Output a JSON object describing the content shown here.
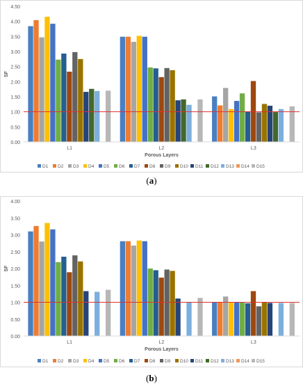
{
  "captions": [
    "a",
    "b"
  ],
  "legend_labels": [
    "D1",
    "D2",
    "D3",
    "D4",
    "D5",
    "D6",
    "D7",
    "D8",
    "D9",
    "D10",
    "D11",
    "D12",
    "D13",
    "D14",
    "D15"
  ],
  "colors": [
    "#4a7fc1",
    "#ed7d31",
    "#a5a5a5",
    "#ffc000",
    "#4472c4",
    "#70ad47",
    "#255e91",
    "#9e480e",
    "#636363",
    "#997300",
    "#264478",
    "#43682b",
    "#7cafdd",
    "#f1975a",
    "#b7b7b7"
  ],
  "chart_data": [
    {
      "type": "bar",
      "panel": "a",
      "categories": [
        "L1",
        "L2",
        "L3"
      ],
      "xlabel": "Porous Layers",
      "ylabel": "SF",
      "ylim": [
        0,
        4.5
      ],
      "ytick_step": 0.5,
      "ytick_labels": [
        "0.00",
        "0.50",
        "1.00",
        "1.50",
        "2.00",
        "2.50",
        "3.00",
        "3.50",
        "4.00",
        "4.50"
      ],
      "reference_line": 1.0,
      "legend_position": "bottom",
      "grid": false,
      "series": [
        {
          "name": "D1",
          "values": [
            3.84,
            3.49,
            1.51
          ]
        },
        {
          "name": "D2",
          "values": [
            4.04,
            3.49,
            1.21
          ]
        },
        {
          "name": "D3",
          "values": [
            3.47,
            3.32,
            1.79
          ]
        },
        {
          "name": "D4",
          "values": [
            4.15,
            3.52,
            1.09
          ]
        },
        {
          "name": "D5",
          "values": [
            3.92,
            3.49,
            1.36
          ]
        },
        {
          "name": "D6",
          "values": [
            2.73,
            2.47,
            1.61
          ]
        },
        {
          "name": "D7",
          "values": [
            2.93,
            2.44,
            1.01
          ]
        },
        {
          "name": "D8",
          "values": [
            2.33,
            2.15,
            2.02
          ]
        },
        {
          "name": "D9",
          "values": [
            2.98,
            2.45,
            0.98
          ]
        },
        {
          "name": "D10",
          "values": [
            2.75,
            2.38,
            1.26
          ]
        },
        {
          "name": "D11",
          "values": [
            1.66,
            1.38,
            1.2
          ]
        },
        {
          "name": "D12",
          "values": [
            1.76,
            1.41,
            0.99
          ]
        },
        {
          "name": "D13",
          "values": [
            1.69,
            1.23,
            1.09
          ]
        },
        {
          "name": "D14",
          "values": [
            0,
            0,
            0
          ]
        },
        {
          "name": "D15",
          "values": [
            1.7,
            1.41,
            1.18
          ]
        }
      ]
    },
    {
      "type": "bar",
      "panel": "b",
      "categories": [
        "L1",
        "L2",
        "L3"
      ],
      "xlabel": "Porous Layers",
      "ylabel": "SF",
      "ylim": [
        0,
        4.0
      ],
      "ytick_step": 0.5,
      "ytick_labels": [
        "0.00",
        "0.50",
        "1.00",
        "1.50",
        "2.00",
        "2.50",
        "3.00",
        "3.50",
        "4.00"
      ],
      "reference_line": 1.0,
      "legend_position": "bottom",
      "grid": false,
      "series": [
        {
          "name": "D1",
          "values": [
            3.1,
            2.81,
            1.0
          ]
        },
        {
          "name": "D2",
          "values": [
            3.26,
            2.81,
            1.0
          ]
        },
        {
          "name": "D3",
          "values": [
            2.8,
            2.68,
            1.17
          ]
        },
        {
          "name": "D4",
          "values": [
            3.35,
            2.83,
            1.0
          ]
        },
        {
          "name": "D5",
          "values": [
            3.16,
            2.81,
            1.0
          ]
        },
        {
          "name": "D6",
          "values": [
            2.19,
            2.0,
            1.0
          ]
        },
        {
          "name": "D7",
          "values": [
            2.35,
            1.95,
            0.97
          ]
        },
        {
          "name": "D8",
          "values": [
            1.89,
            1.73,
            1.33
          ]
        },
        {
          "name": "D9",
          "values": [
            2.39,
            1.97,
            0.88
          ]
        },
        {
          "name": "D10",
          "values": [
            2.21,
            1.93,
            1.0
          ]
        },
        {
          "name": "D11",
          "values": [
            1.33,
            1.11,
            0.98
          ]
        },
        {
          "name": "D12",
          "values": [
            0,
            0,
            0
          ]
        },
        {
          "name": "D13",
          "values": [
            1.31,
            1.0,
            0.98
          ]
        },
        {
          "name": "D14",
          "values": [
            0,
            0,
            0
          ]
        },
        {
          "name": "D15",
          "values": [
            1.37,
            1.13,
            0.98
          ]
        }
      ]
    }
  ]
}
